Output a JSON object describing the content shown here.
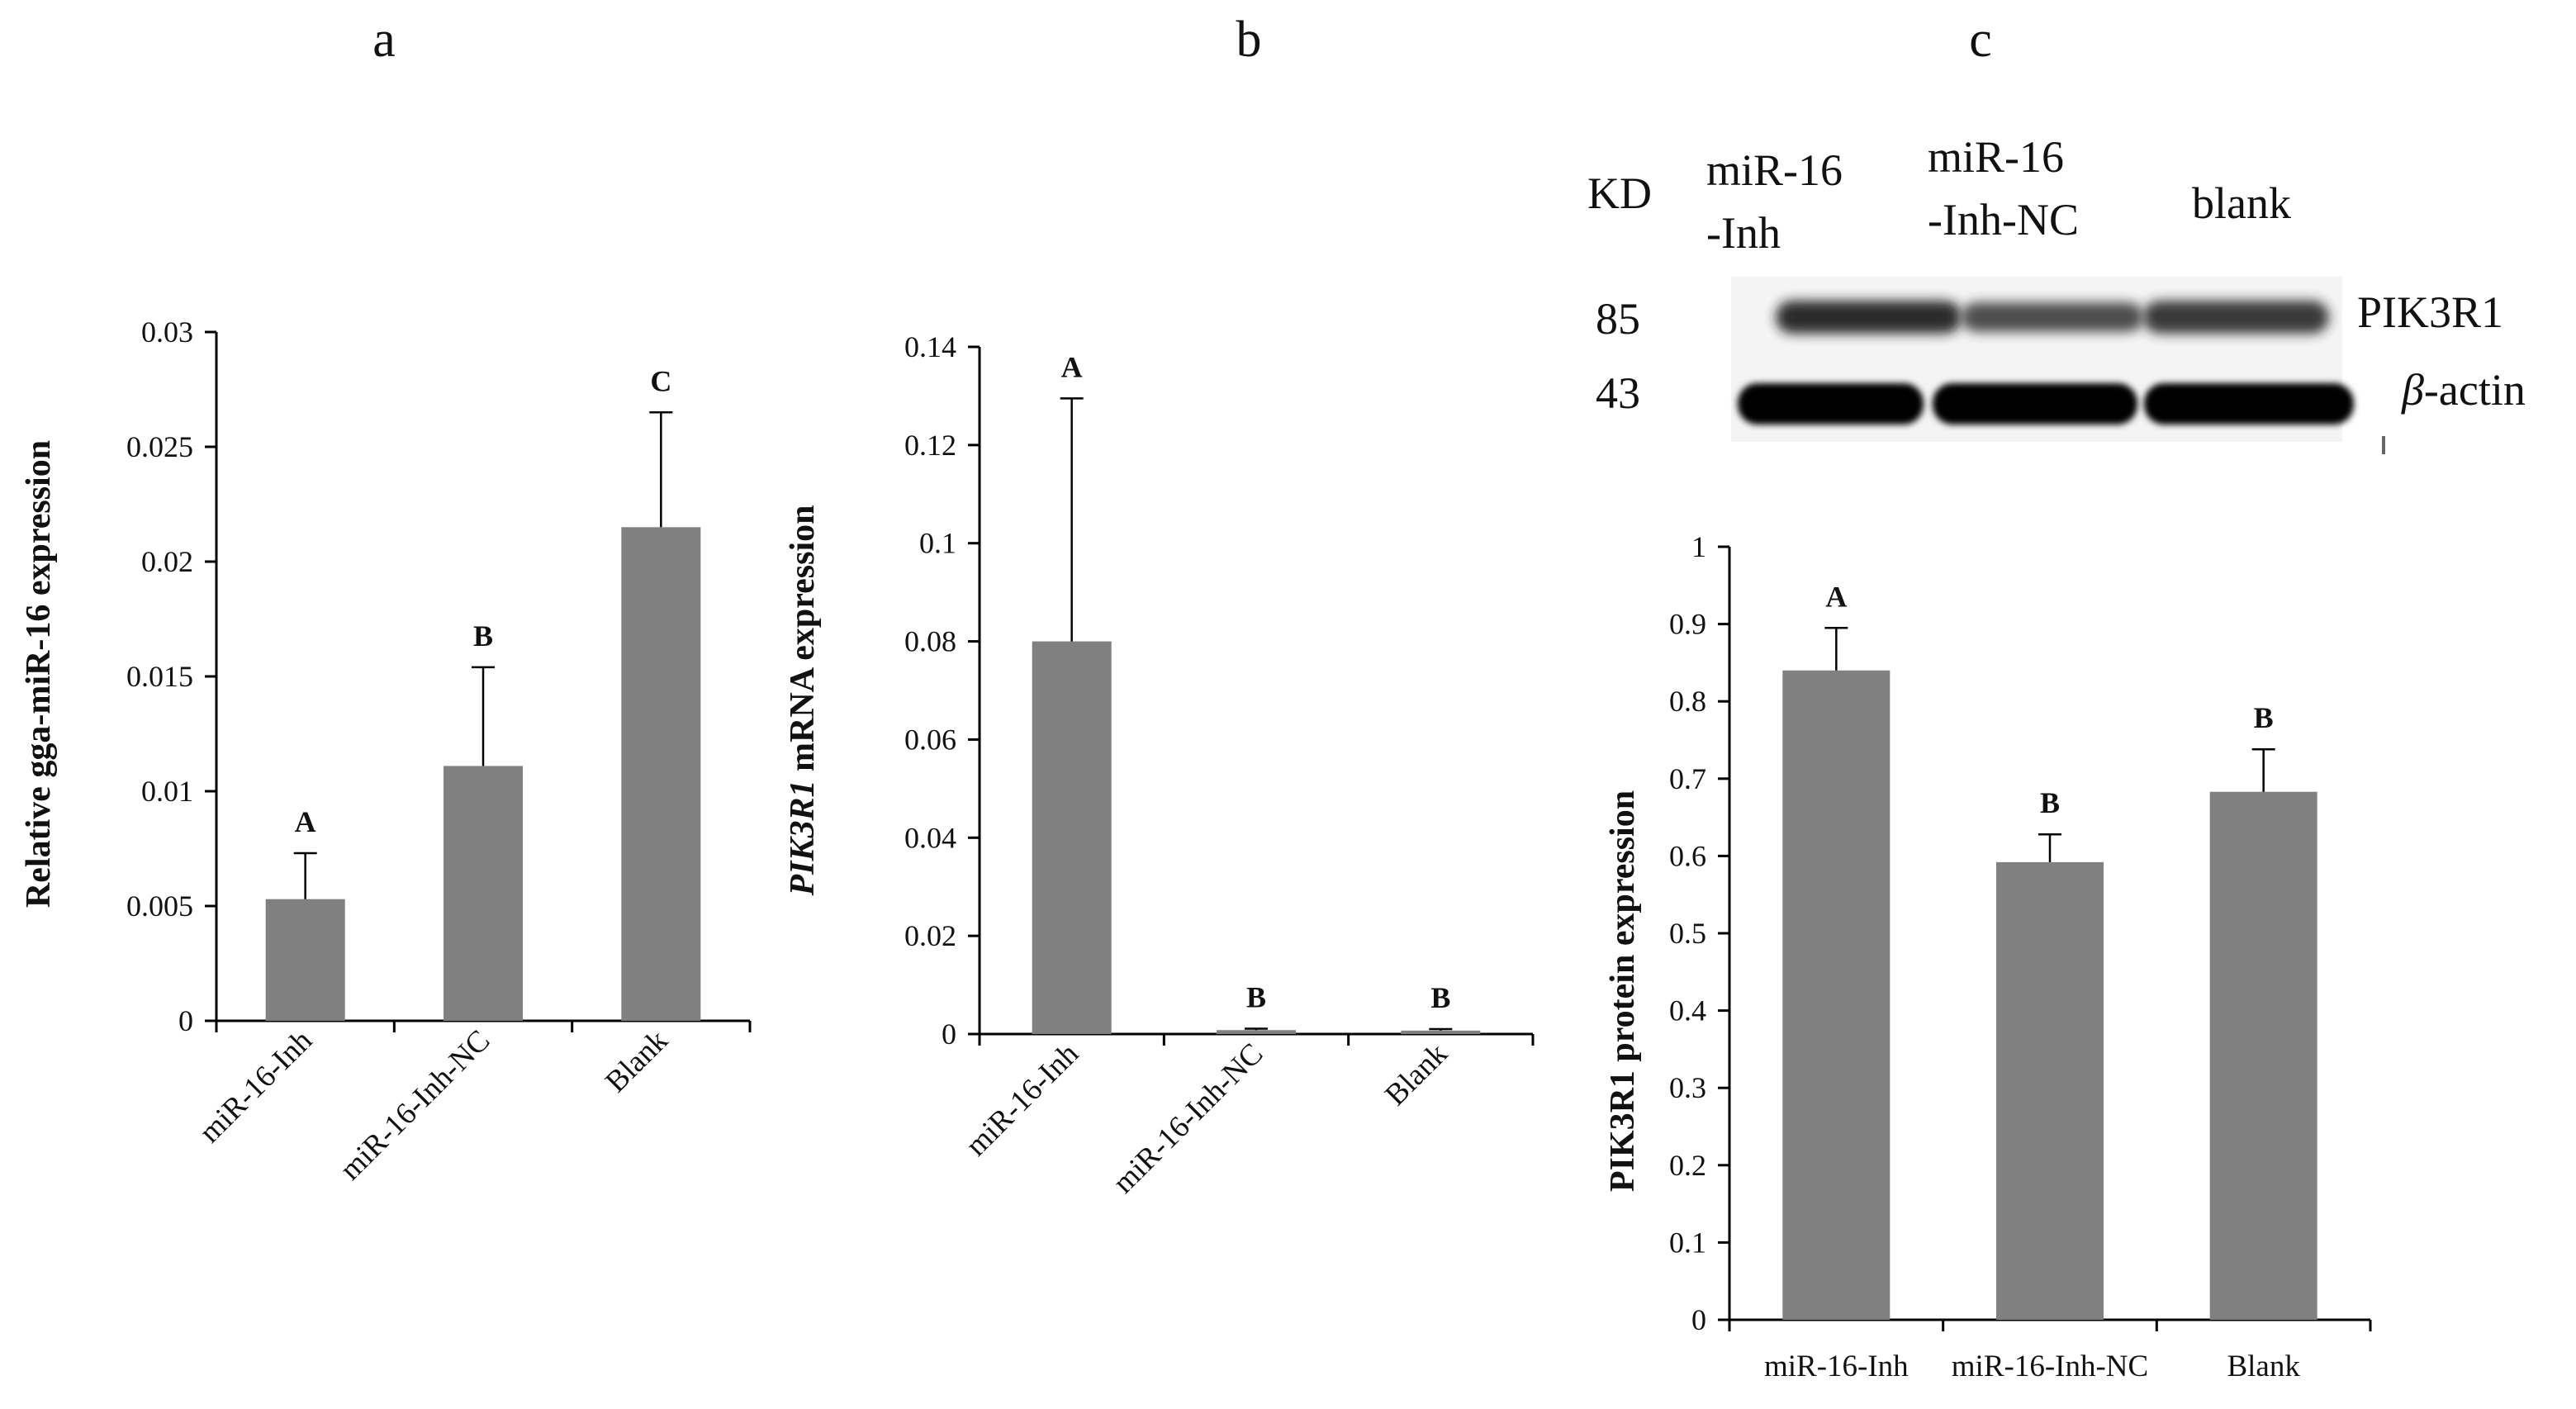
{
  "panel_letters": [
    "a",
    "b",
    "c"
  ],
  "colors": {
    "bar": "#808080",
    "axis": "#000000",
    "text": "#111111"
  },
  "chart_data": [
    {
      "type": "bar",
      "title": "",
      "xlabel": "",
      "ylabel": "Relative gga-miR-16 expression",
      "ylim": [
        0,
        0.03
      ],
      "yticks": [
        0,
        0.005,
        0.01,
        0.015,
        0.02,
        0.025,
        0.03
      ],
      "ytick_labels": [
        "0",
        "0.005",
        "0.01",
        "0.015",
        "0.02",
        "0.025",
        "0.03"
      ],
      "categories": [
        "miR-16-Inh",
        "miR-16-Inh-NC",
        "Blank"
      ],
      "values": [
        0.0053,
        0.0111,
        0.0215
      ],
      "errors": [
        0.002,
        0.0043,
        0.005
      ],
      "significance": [
        "A",
        "B",
        "C"
      ]
    },
    {
      "type": "bar",
      "title": "",
      "xlabel": "",
      "ylabel": "PIK3R1 mRNA  expression",
      "ylabel_italic": "PIK3R1",
      "ylabel_rest": " mRNA  expression",
      "ylim": [
        0,
        0.14
      ],
      "yticks": [
        0,
        0.02,
        0.04,
        0.06,
        0.08,
        0.1,
        0.12,
        0.14
      ],
      "ytick_labels": [
        "0",
        "0.02",
        "0.04",
        "0.06",
        "0.08",
        "0.1",
        "0.12",
        "0.14"
      ],
      "categories": [
        "miR-16-Inh",
        "miR-16-Inh-NC",
        "Blank"
      ],
      "values": [
        0.08,
        0.0008,
        0.0007
      ],
      "errors": [
        0.0495,
        0.0003,
        0.0003
      ],
      "significance": [
        "A",
        "B",
        "B"
      ]
    },
    {
      "type": "bar",
      "title": "",
      "xlabel": "",
      "ylabel": "PIK3R1 protein expression",
      "ylim": [
        0,
        1
      ],
      "yticks": [
        0,
        0.1,
        0.2,
        0.3,
        0.4,
        0.5,
        0.6,
        0.7,
        0.8,
        0.9,
        1
      ],
      "ytick_labels": [
        "0",
        "0.1",
        "0.2",
        "0.3",
        "0.4",
        "0.5",
        "0.6",
        "0.7",
        "0.8",
        "0.9",
        "1"
      ],
      "categories": [
        "miR-16-Inh",
        "miR-16-Inh-NC",
        "Blank"
      ],
      "values": [
        0.84,
        0.592,
        0.683
      ],
      "errors": [
        0.055,
        0.036,
        0.055
      ],
      "significance": [
        "A",
        "B",
        "B"
      ]
    }
  ],
  "blot": {
    "kd_header": "KD",
    "lane_headers": [
      {
        "line1": "miR-16",
        "line2": "-Inh"
      },
      {
        "line1": "miR-16",
        "line2": "-Inh-NC"
      },
      {
        "line1": "blank",
        "line2": ""
      }
    ],
    "markers": [
      {
        "kd": "85",
        "name": "PIK3R1"
      },
      {
        "kd": "43",
        "name_italic": "β",
        "name_rest": "-actin"
      }
    ]
  }
}
